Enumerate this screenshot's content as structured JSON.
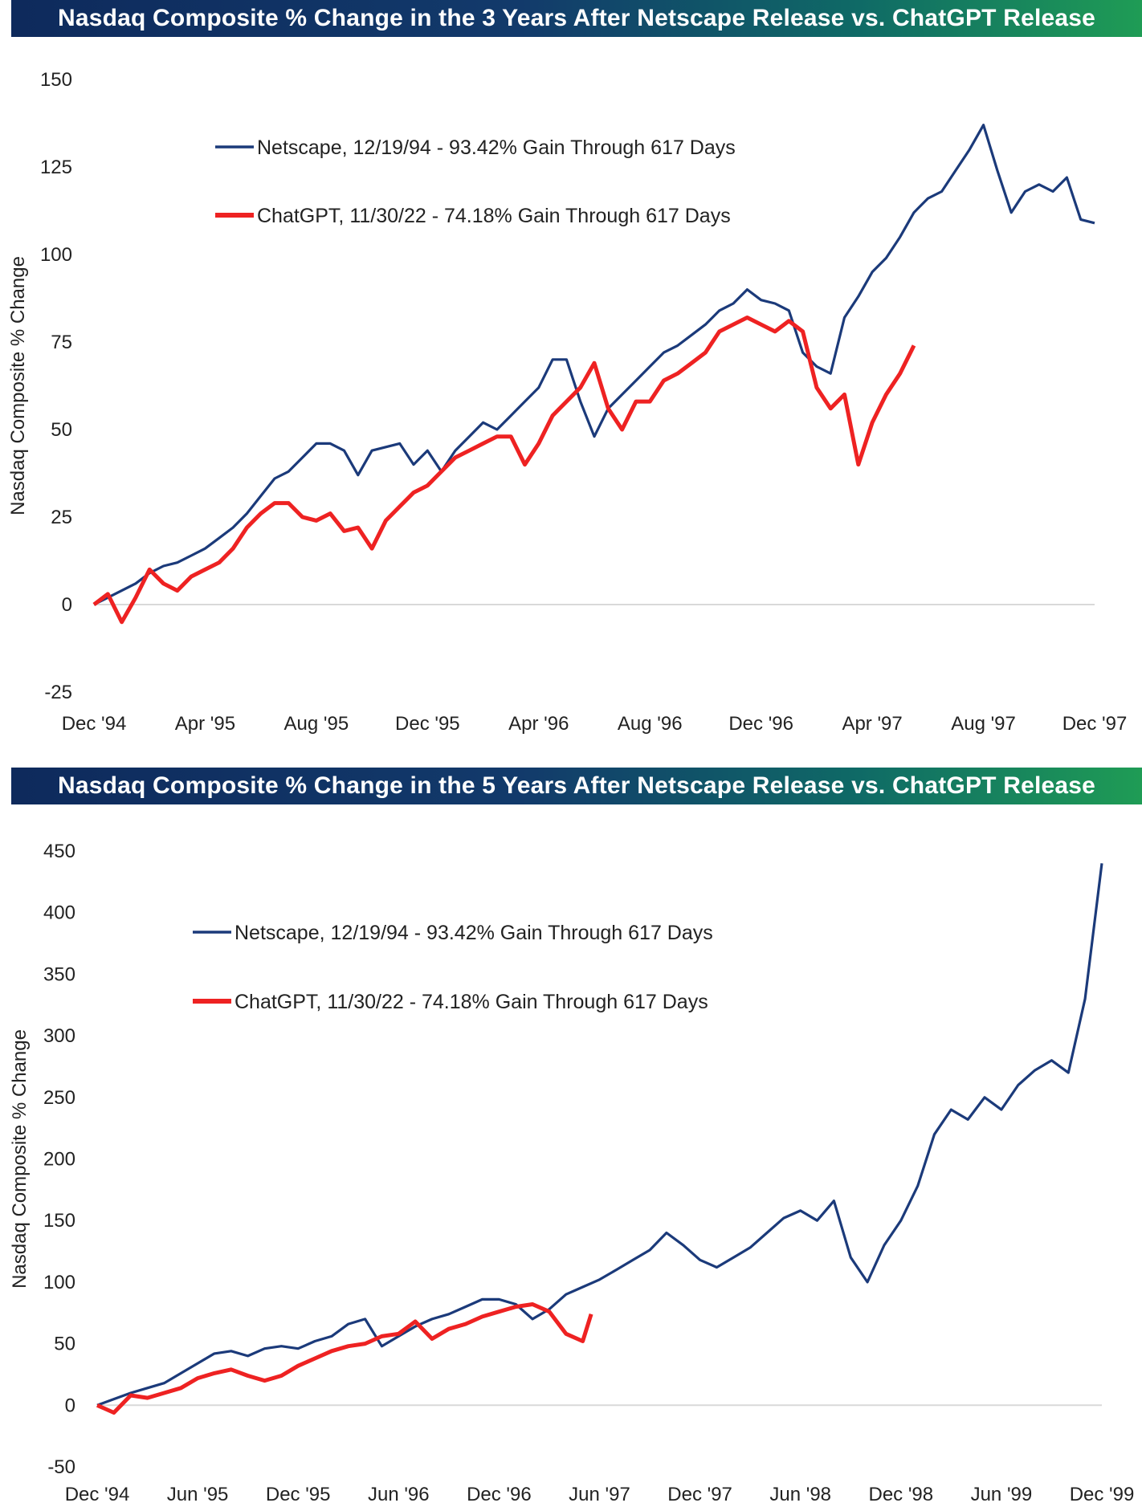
{
  "colors": {
    "netscape": "#1b3a7a",
    "chatgpt": "#ee2222",
    "zero_line": "#d9d9d9"
  },
  "chart_data": [
    {
      "type": "line",
      "title": "Nasdaq Composite % Change in the 3 Years After Netscape Release vs. ChatGPT Release",
      "ylabel": "Nasdaq Composite % Change",
      "ylim": [
        -25,
        150
      ],
      "yticks": [
        150,
        125,
        100,
        75,
        50,
        25,
        0,
        -25
      ],
      "xlim": [
        0,
        36
      ],
      "xticks": [
        {
          "label": "Dec '94",
          "x": 0
        },
        {
          "label": "Apr '95",
          "x": 4
        },
        {
          "label": "Aug '95",
          "x": 8
        },
        {
          "label": "Dec '95",
          "x": 12
        },
        {
          "label": "Apr '96",
          "x": 16
        },
        {
          "label": "Aug '96",
          "x": 20
        },
        {
          "label": "Dec '96",
          "x": 24
        },
        {
          "label": "Apr '97",
          "x": 28
        },
        {
          "label": "Aug '97",
          "x": 32
        },
        {
          "label": "Dec '97",
          "x": 36
        }
      ],
      "legend": "top-left",
      "grid": false,
      "series": [
        {
          "name": "Netscape, 12/19/94 - 93.42% Gain Through 617 Days",
          "color": "#1b3a7a",
          "x": [
            0,
            0.5,
            1,
            1.5,
            2,
            2.5,
            3,
            3.5,
            4,
            4.5,
            5,
            5.5,
            6,
            6.5,
            7,
            7.5,
            8,
            8.5,
            9,
            9.5,
            10,
            10.5,
            11,
            11.5,
            12,
            12.5,
            13,
            13.5,
            14,
            14.5,
            15,
            15.5,
            16,
            16.5,
            17,
            17.5,
            18,
            18.5,
            19,
            19.5,
            20,
            20.5,
            21,
            21.5,
            22,
            22.5,
            23,
            23.5,
            24,
            24.5,
            25,
            25.5,
            26,
            26.5,
            27,
            27.5,
            28,
            28.5,
            29,
            29.5,
            30,
            30.5,
            31,
            31.5,
            32,
            32.5,
            33,
            33.5,
            34,
            34.5,
            35,
            35.5,
            36
          ],
          "y": [
            0,
            2,
            4,
            6,
            9,
            11,
            12,
            14,
            16,
            19,
            22,
            26,
            31,
            36,
            38,
            42,
            46,
            46,
            44,
            37,
            44,
            45,
            46,
            40,
            44,
            38,
            44,
            48,
            52,
            50,
            54,
            58,
            62,
            70,
            70,
            58,
            48,
            56,
            60,
            64,
            68,
            72,
            74,
            77,
            80,
            84,
            86,
            90,
            87,
            86,
            84,
            72,
            68,
            66,
            82,
            88,
            95,
            99,
            105,
            112,
            116,
            118,
            124,
            130,
            137,
            124,
            112,
            118,
            120,
            118,
            122,
            110,
            109
          ]
        },
        {
          "name": "ChatGPT, 11/30/22 - 74.18% Gain Through 617 Days",
          "color": "#ee2222",
          "x": [
            0,
            0.5,
            1,
            1.5,
            2,
            2.5,
            3,
            3.5,
            4,
            4.5,
            5,
            5.5,
            6,
            6.5,
            7,
            7.5,
            8,
            8.5,
            9,
            9.5,
            10,
            10.5,
            11,
            11.5,
            12,
            12.5,
            13,
            13.5,
            14,
            14.5,
            15,
            15.5,
            16,
            16.5,
            17,
            17.5,
            18,
            18.5,
            19,
            19.5,
            20,
            20.5,
            21,
            21.5,
            22,
            22.5,
            23,
            23.5,
            24,
            24.5,
            25,
            25.5,
            26,
            26.5,
            27,
            27.5,
            28,
            28.5,
            29,
            29.5
          ],
          "y": [
            0,
            3,
            -5,
            2,
            10,
            6,
            4,
            8,
            10,
            12,
            16,
            22,
            26,
            29,
            29,
            25,
            24,
            26,
            21,
            22,
            16,
            24,
            28,
            32,
            34,
            38,
            42,
            44,
            46,
            48,
            48,
            40,
            46,
            54,
            58,
            62,
            69,
            56,
            50,
            58,
            58,
            64,
            66,
            69,
            72,
            78,
            80,
            82,
            80,
            78,
            81,
            78,
            62,
            56,
            60,
            40,
            52,
            60,
            66,
            74
          ]
        }
      ]
    },
    {
      "type": "line",
      "title": "Nasdaq Composite % Change in the 5 Years After Netscape Release vs. ChatGPT Release",
      "ylabel": "Nasdaq Composite % Change",
      "ylim": [
        -50,
        450
      ],
      "yticks": [
        450,
        400,
        350,
        300,
        250,
        200,
        150,
        100,
        50,
        0,
        -50
      ],
      "xlim": [
        0,
        60
      ],
      "xticks": [
        {
          "label": "Dec '94",
          "x": 0
        },
        {
          "label": "Jun '95",
          "x": 6
        },
        {
          "label": "Dec '95",
          "x": 12
        },
        {
          "label": "Jun '96",
          "x": 18
        },
        {
          "label": "Dec '96",
          "x": 24
        },
        {
          "label": "Jun '97",
          "x": 30
        },
        {
          "label": "Dec '97",
          "x": 36
        },
        {
          "label": "Jun '98",
          "x": 42
        },
        {
          "label": "Dec '98",
          "x": 48
        },
        {
          "label": "Jun '99",
          "x": 54
        },
        {
          "label": "Dec '99",
          "x": 60
        }
      ],
      "legend": "top-left",
      "grid": false,
      "series": [
        {
          "name": "Netscape, 12/19/94 - 93.42% Gain Through 617 Days",
          "color": "#1b3a7a",
          "x": [
            0,
            1,
            2,
            3,
            4,
            5,
            6,
            7,
            8,
            9,
            10,
            11,
            12,
            13,
            14,
            15,
            16,
            17,
            18,
            19,
            20,
            21,
            22,
            23,
            24,
            25,
            26,
            27,
            28,
            29,
            30,
            31,
            32,
            33,
            34,
            35,
            36,
            37,
            38,
            39,
            40,
            41,
            42,
            43,
            44,
            45,
            46,
            47,
            48,
            49,
            50,
            51,
            52,
            53,
            54,
            55,
            56,
            57,
            58,
            59,
            60
          ],
          "y": [
            0,
            5,
            10,
            14,
            18,
            26,
            34,
            42,
            44,
            40,
            46,
            48,
            46,
            52,
            56,
            66,
            70,
            48,
            56,
            64,
            70,
            74,
            80,
            86,
            86,
            82,
            70,
            78,
            90,
            96,
            102,
            110,
            118,
            126,
            140,
            130,
            118,
            112,
            120,
            128,
            140,
            152,
            158,
            150,
            166,
            120,
            100,
            130,
            150,
            178,
            220,
            240,
            232,
            250,
            240,
            260,
            272,
            280,
            270,
            330,
            440
          ]
        },
        {
          "name": "ChatGPT, 11/30/22 - 74.18% Gain Through 617 Days",
          "color": "#ee2222",
          "x": [
            0,
            1,
            2,
            3,
            4,
            5,
            6,
            7,
            8,
            9,
            10,
            11,
            12,
            13,
            14,
            15,
            16,
            17,
            18,
            19,
            20,
            21,
            22,
            23,
            24,
            25,
            26,
            27,
            28,
            29,
            29.5
          ],
          "y": [
            0,
            -6,
            8,
            6,
            10,
            14,
            22,
            26,
            29,
            24,
            20,
            24,
            32,
            38,
            44,
            48,
            50,
            56,
            58,
            68,
            54,
            62,
            66,
            72,
            76,
            80,
            82,
            76,
            58,
            52,
            74
          ]
        }
      ]
    }
  ]
}
